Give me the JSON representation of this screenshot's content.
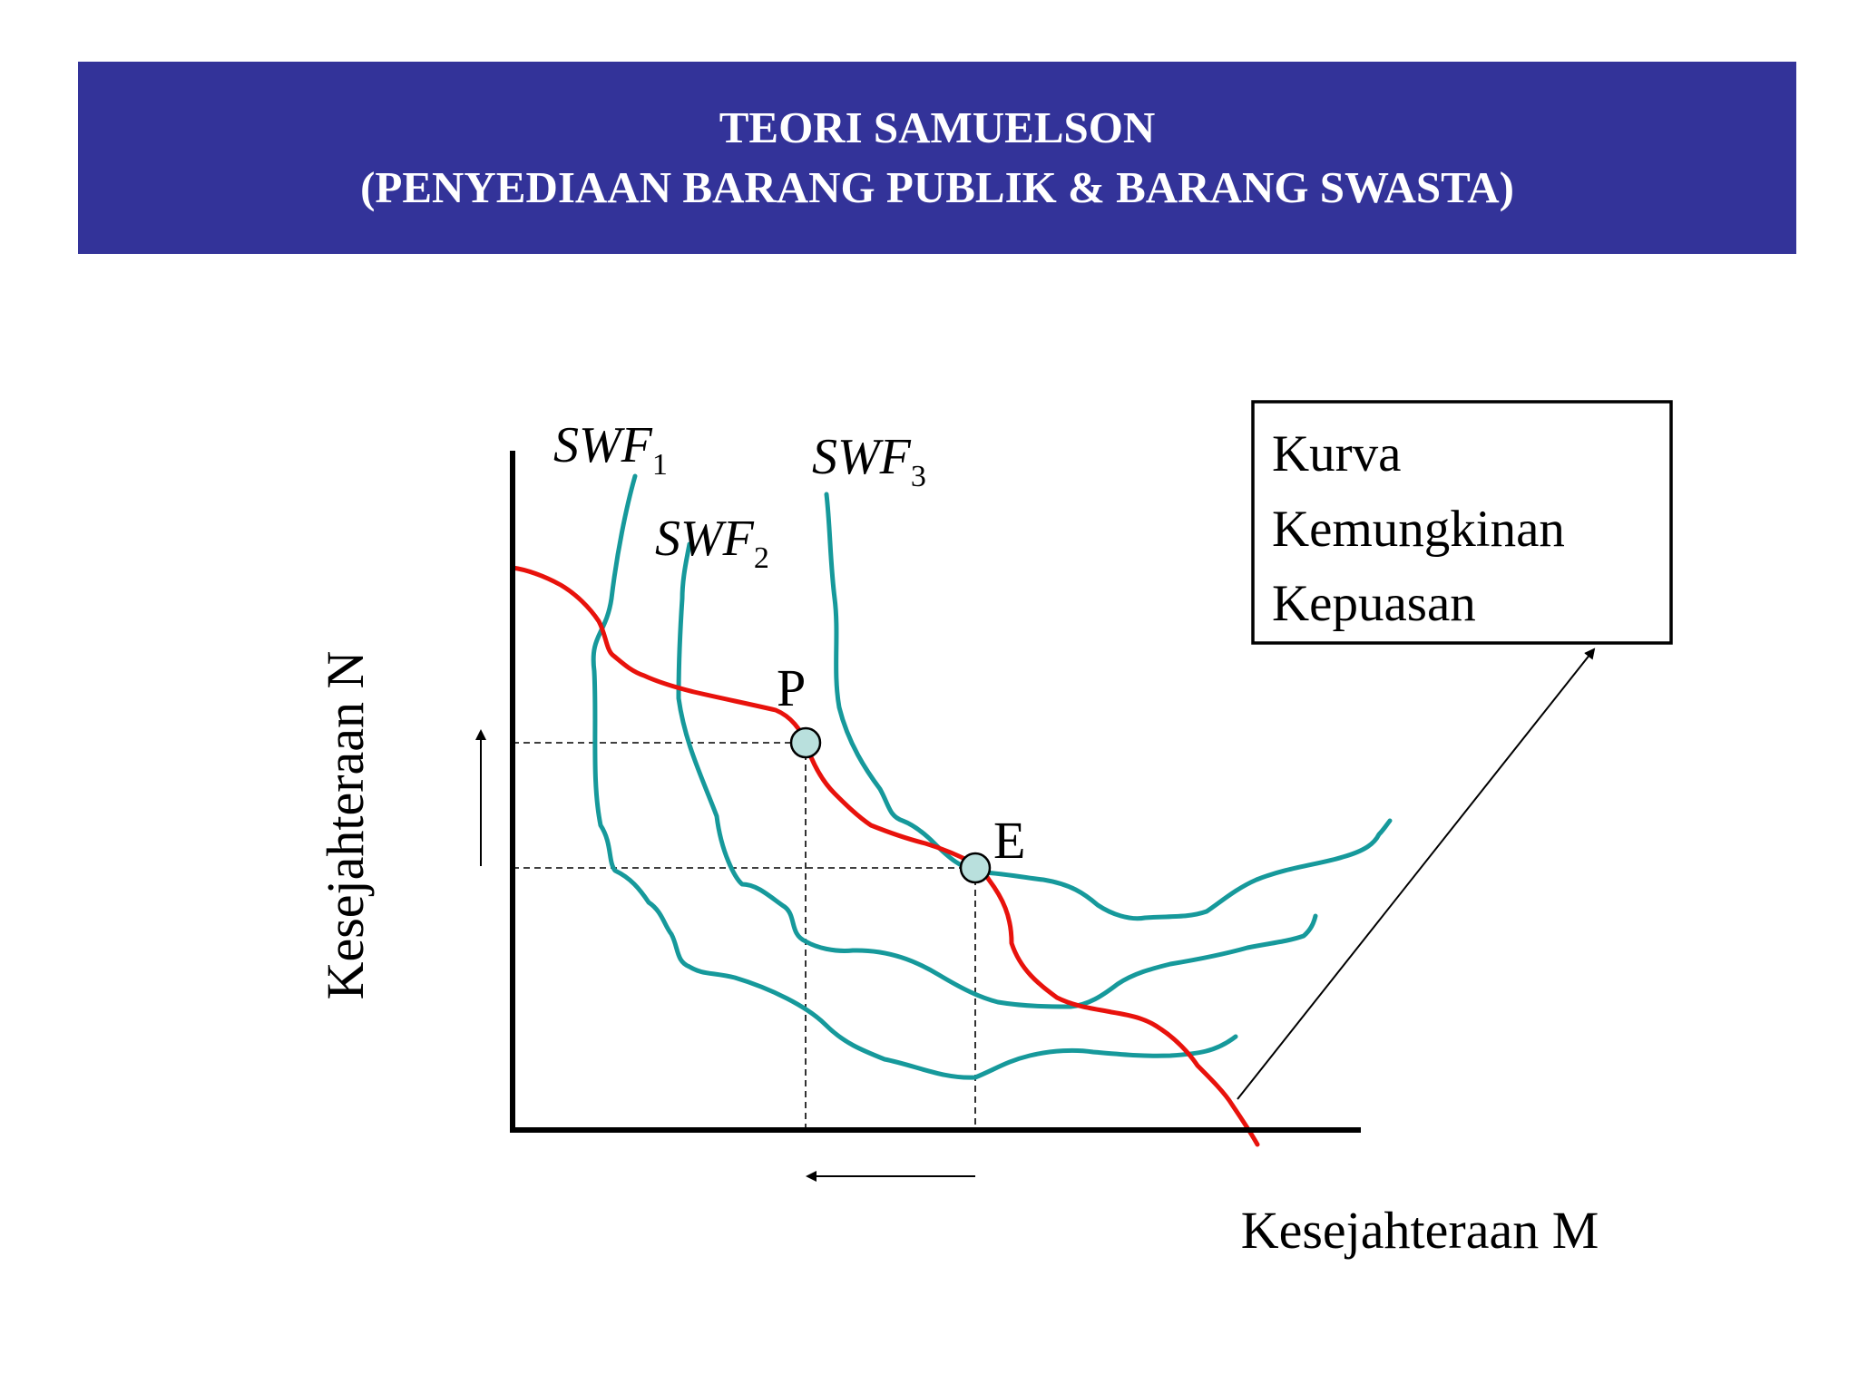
{
  "title": {
    "line1": "TEORI SAMUELSON",
    "line2": "(PENYEDIAAN BARANG PUBLIK & BARANG SWASTA)"
  },
  "axes": {
    "y_label": "Kesejahteraan N",
    "x_label": "Kesejahteraan M"
  },
  "curves": {
    "swf1": {
      "base": "SWF",
      "sub": "1"
    },
    "swf2": {
      "base": "SWF",
      "sub": "2"
    },
    "swf3": {
      "base": "SWF",
      "sub": "3"
    }
  },
  "points": {
    "p": "P",
    "e": "E"
  },
  "legend_box": {
    "line1": "Kurva",
    "line2": "Kemungkinan",
    "line3": "Kepuasan"
  },
  "colors": {
    "banner": "#333399",
    "indifference_curve": "#16999b",
    "possibility_curve": "#e8120c",
    "point_fill": "#b9e0dd"
  }
}
